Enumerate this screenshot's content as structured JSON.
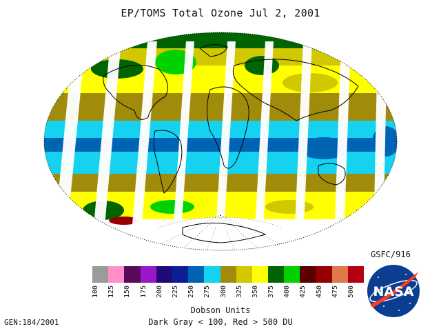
{
  "title": "EP/TOMS Total Ozone Jul  2, 2001",
  "credit": "GSFC/916",
  "generation": "GEN:184/2001",
  "units_label": "Dobson Units",
  "range_note": "Dark Gray < 100, Red > 500 DU",
  "logo_text": "NASA",
  "color_scale": [
    {
      "label": "100",
      "color": "#9b9b9b"
    },
    {
      "label": "125",
      "color": "#ff8fc8"
    },
    {
      "label": "150",
      "color": "#5a0a5a"
    },
    {
      "label": "175",
      "color": "#9a18c8"
    },
    {
      "label": "200",
      "color": "#1e0a78"
    },
    {
      "label": "225",
      "color": "#0a1e96"
    },
    {
      "label": "250",
      "color": "#0064b4"
    },
    {
      "label": "275",
      "color": "#14d2f0"
    },
    {
      "label": "300",
      "color": "#a08c0a"
    },
    {
      "label": "325",
      "color": "#d2c800"
    },
    {
      "label": "350",
      "color": "#ffff00"
    },
    {
      "label": "375",
      "color": "#006400"
    },
    {
      "label": "400",
      "color": "#00d200"
    },
    {
      "label": "425",
      "color": "#5a0000"
    },
    {
      "label": "450",
      "color": "#960000"
    },
    {
      "label": "475",
      "color": "#e0784a"
    },
    {
      "label": "500",
      "color": "#b40014"
    }
  ]
}
